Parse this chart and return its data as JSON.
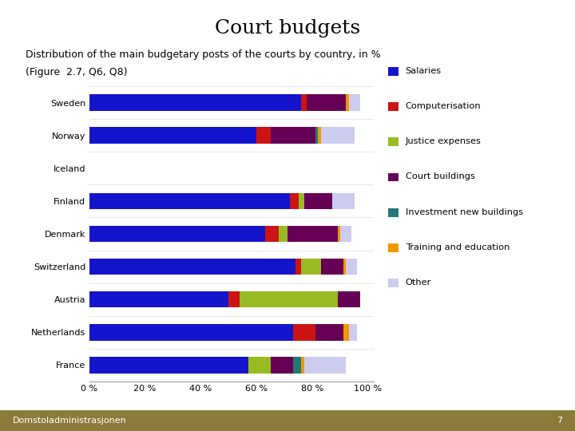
{
  "title": "Court budgets",
  "subtitle": "Distribution of the main budgetary posts of the courts by country, in %",
  "subtitle2": "(Figure  2.7, Q6, Q8)",
  "countries": [
    "Sweden",
    "Norway",
    "Iceland",
    "Finland",
    "Denmark",
    "Switzerland",
    "Austria",
    "Netherlands",
    "France"
  ],
  "categories": [
    "Salaries",
    "Computerisation",
    "Justice expenses",
    "Court buildings",
    "Investment new buildings",
    "Training and education",
    "Other"
  ],
  "colors": [
    "#1414CC",
    "#CC1414",
    "#99BB22",
    "#660055",
    "#227777",
    "#EE9900",
    "#CCCCEE"
  ],
  "data": {
    "Sweden": [
      76,
      2,
      0,
      14,
      0,
      1,
      4
    ],
    "Norway": [
      60,
      5,
      0,
      16,
      1,
      1,
      12
    ],
    "Iceland": [
      0,
      0,
      0,
      0,
      0,
      0,
      0
    ],
    "Finland": [
      72,
      3,
      2,
      10,
      0,
      0,
      8
    ],
    "Denmark": [
      63,
      5,
      3,
      18,
      0,
      1,
      4
    ],
    "Switzerland": [
      74,
      2,
      7,
      8,
      0,
      1,
      4
    ],
    "Austria": [
      50,
      4,
      35,
      8,
      0,
      0,
      0
    ],
    "Netherlands": [
      73,
      8,
      0,
      10,
      0,
      2,
      3
    ],
    "France": [
      57,
      0,
      8,
      8,
      3,
      1,
      15
    ]
  },
  "footer": "Domstoladministrasjonen",
  "footer_page": "7",
  "xlabel_ticks": [
    "0 %",
    "20 %",
    "40 %",
    "60 %",
    "80 %",
    "100 %"
  ],
  "xlabel_vals": [
    0,
    20,
    40,
    60,
    80,
    100
  ],
  "footer_color": "#8B7B3A"
}
